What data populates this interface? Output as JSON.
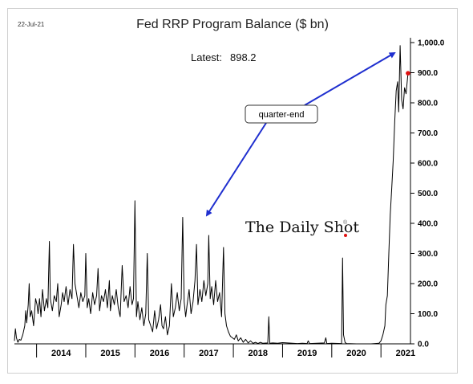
{
  "date_stamp": "22-Jul-21",
  "latest_label": "Latest:",
  "latest_value": "898.2",
  "callout_label": "quarter-end",
  "watermark": "The Daily Shot",
  "watermark_mark": "®",
  "colors": {
    "line": "#000000",
    "arrow": "#1f2fcf",
    "latest_marker": "#e01010",
    "watermark_dot": "#e01010",
    "grid": "#000000"
  },
  "chart_data": {
    "type": "line",
    "title": "Fed RRP Program Balance ($ bn)",
    "xlabel": "",
    "ylabel": "",
    "x_range": [
      2013.55,
      2021.6
    ],
    "ylim": [
      0,
      1000
    ],
    "y_ticks": [
      0,
      100,
      200,
      300,
      400,
      500,
      600,
      700,
      800,
      900,
      1000
    ],
    "y_tick_labels": [
      "0.0",
      "100.0",
      "200.0",
      "300.0",
      "400.0",
      "500.0",
      "600.0",
      "700.0",
      "800.0",
      "900.0",
      "1,000.0"
    ],
    "x_tick_labels": [
      "2014",
      "2015",
      "2016",
      "2017",
      "2018",
      "2019",
      "2020",
      "2021"
    ],
    "x_tick_positions": [
      2014.5,
      2015.5,
      2016.5,
      2017.5,
      2018.5,
      2019.5,
      2020.5,
      2021.5
    ],
    "x_dividers": [
      2014,
      2015,
      2016,
      2017,
      2018,
      2019,
      2020,
      2021
    ],
    "y_axis_side": "right",
    "grid": false,
    "legend": "none",
    "latest_point": {
      "x": 2021.55,
      "y": 898.2
    },
    "series": [
      {
        "values": [
          [
            2013.55,
            10
          ],
          [
            2013.57,
            50
          ],
          [
            2013.59,
            20
          ],
          [
            2013.62,
            5
          ],
          [
            2013.65,
            15
          ],
          [
            2013.68,
            12
          ],
          [
            2013.72,
            30
          ],
          [
            2013.76,
            60
          ],
          [
            2013.78,
            110
          ],
          [
            2013.8,
            70
          ],
          [
            2013.83,
            130
          ],
          [
            2013.85,
            200
          ],
          [
            2013.87,
            90
          ],
          [
            2013.9,
            110
          ],
          [
            2013.94,
            60
          ],
          [
            2013.98,
            150
          ],
          [
            2014.01,
            130
          ],
          [
            2014.03,
            100
          ],
          [
            2014.06,
            150
          ],
          [
            2014.09,
            90
          ],
          [
            2014.12,
            180
          ],
          [
            2014.16,
            110
          ],
          [
            2014.2,
            150
          ],
          [
            2014.23,
            120
          ],
          [
            2014.26,
            340
          ],
          [
            2014.28,
            150
          ],
          [
            2014.32,
            110
          ],
          [
            2014.36,
            160
          ],
          [
            2014.4,
            140
          ],
          [
            2014.43,
            200
          ],
          [
            2014.46,
            90
          ],
          [
            2014.5,
            130
          ],
          [
            2014.53,
            170
          ],
          [
            2014.56,
            140
          ],
          [
            2014.6,
            190
          ],
          [
            2014.64,
            130
          ],
          [
            2014.68,
            180
          ],
          [
            2014.72,
            150
          ],
          [
            2014.75,
            330
          ],
          [
            2014.78,
            200
          ],
          [
            2014.82,
            160
          ],
          [
            2014.86,
            120
          ],
          [
            2014.9,
            170
          ],
          [
            2014.94,
            140
          ],
          [
            2014.98,
            160
          ],
          [
            2015.0,
            300
          ],
          [
            2015.03,
            120
          ],
          [
            2015.06,
            150
          ],
          [
            2015.1,
            100
          ],
          [
            2015.14,
            170
          ],
          [
            2015.18,
            130
          ],
          [
            2015.22,
            160
          ],
          [
            2015.25,
            250
          ],
          [
            2015.28,
            110
          ],
          [
            2015.32,
            160
          ],
          [
            2015.36,
            140
          ],
          [
            2015.4,
            180
          ],
          [
            2015.44,
            120
          ],
          [
            2015.48,
            210
          ],
          [
            2015.5,
            110
          ],
          [
            2015.54,
            160
          ],
          [
            2015.58,
            130
          ],
          [
            2015.62,
            180
          ],
          [
            2015.66,
            120
          ],
          [
            2015.7,
            90
          ],
          [
            2015.74,
            260
          ],
          [
            2015.78,
            140
          ],
          [
            2015.82,
            160
          ],
          [
            2015.86,
            120
          ],
          [
            2015.9,
            190
          ],
          [
            2015.94,
            130
          ],
          [
            2015.97,
            150
          ],
          [
            2016.0,
            475
          ],
          [
            2016.03,
            90
          ],
          [
            2016.06,
            140
          ],
          [
            2016.1,
            80
          ],
          [
            2016.14,
            120
          ],
          [
            2016.18,
            60
          ],
          [
            2016.22,
            100
          ],
          [
            2016.25,
            300
          ],
          [
            2016.28,
            80
          ],
          [
            2016.32,
            60
          ],
          [
            2016.36,
            40
          ],
          [
            2016.4,
            110
          ],
          [
            2016.44,
            50
          ],
          [
            2016.48,
            80
          ],
          [
            2016.52,
            130
          ],
          [
            2016.55,
            60
          ],
          [
            2016.58,
            50
          ],
          [
            2016.62,
            90
          ],
          [
            2016.66,
            30
          ],
          [
            2016.7,
            60
          ],
          [
            2016.74,
            200
          ],
          [
            2016.78,
            90
          ],
          [
            2016.82,
            120
          ],
          [
            2016.86,
            170
          ],
          [
            2016.9,
            110
          ],
          [
            2016.94,
            150
          ],
          [
            2016.97,
            420
          ],
          [
            2017.0,
            140
          ],
          [
            2017.03,
            90
          ],
          [
            2017.06,
            130
          ],
          [
            2017.1,
            180
          ],
          [
            2017.14,
            100
          ],
          [
            2017.18,
            140
          ],
          [
            2017.22,
            210
          ],
          [
            2017.25,
            330
          ],
          [
            2017.28,
            130
          ],
          [
            2017.32,
            180
          ],
          [
            2017.36,
            140
          ],
          [
            2017.4,
            210
          ],
          [
            2017.44,
            160
          ],
          [
            2017.48,
            200
          ],
          [
            2017.5,
            360
          ],
          [
            2017.53,
            150
          ],
          [
            2017.56,
            190
          ],
          [
            2017.6,
            130
          ],
          [
            2017.64,
            210
          ],
          [
            2017.68,
            140
          ],
          [
            2017.72,
            170
          ],
          [
            2017.76,
            90
          ],
          [
            2017.8,
            320
          ],
          [
            2017.83,
            100
          ],
          [
            2017.86,
            60
          ],
          [
            2017.9,
            40
          ],
          [
            2017.94,
            25
          ],
          [
            2017.98,
            20
          ],
          [
            2018.02,
            15
          ],
          [
            2018.06,
            30
          ],
          [
            2018.1,
            10
          ],
          [
            2018.15,
            20
          ],
          [
            2018.2,
            5
          ],
          [
            2018.25,
            15
          ],
          [
            2018.3,
            3
          ],
          [
            2018.35,
            10
          ],
          [
            2018.4,
            2
          ],
          [
            2018.45,
            5
          ],
          [
            2018.5,
            1
          ],
          [
            2018.55,
            5
          ],
          [
            2018.6,
            2
          ],
          [
            2018.7,
            3
          ],
          [
            2018.72,
            90
          ],
          [
            2018.74,
            2
          ],
          [
            2018.8,
            3
          ],
          [
            2018.9,
            2
          ],
          [
            2019.0,
            4
          ],
          [
            2019.1,
            3
          ],
          [
            2019.2,
            2
          ],
          [
            2019.3,
            1
          ],
          [
            2019.4,
            2
          ],
          [
            2019.5,
            1
          ],
          [
            2019.52,
            10
          ],
          [
            2019.55,
            1
          ],
          [
            2019.7,
            2
          ],
          [
            2019.85,
            3
          ],
          [
            2019.88,
            20
          ],
          [
            2019.9,
            1
          ],
          [
            2020.0,
            2
          ],
          [
            2020.2,
            1
          ],
          [
            2020.22,
            285
          ],
          [
            2020.24,
            30
          ],
          [
            2020.27,
            5
          ],
          [
            2020.3,
            1
          ],
          [
            2020.5,
            0
          ],
          [
            2020.8,
            0
          ],
          [
            2020.88,
            1
          ],
          [
            2020.96,
            2
          ],
          [
            2021.0,
            10
          ],
          [
            2021.04,
            30
          ],
          [
            2021.08,
            60
          ],
          [
            2021.1,
            130
          ],
          [
            2021.13,
            160
          ],
          [
            2021.16,
            300
          ],
          [
            2021.19,
            430
          ],
          [
            2021.22,
            520
          ],
          [
            2021.25,
            610
          ],
          [
            2021.28,
            740
          ],
          [
            2021.31,
            840
          ],
          [
            2021.34,
            870
          ],
          [
            2021.36,
            770
          ],
          [
            2021.39,
            990
          ],
          [
            2021.42,
            810
          ],
          [
            2021.45,
            780
          ],
          [
            2021.48,
            850
          ],
          [
            2021.51,
            830
          ],
          [
            2021.55,
            898
          ]
        ]
      }
    ]
  }
}
